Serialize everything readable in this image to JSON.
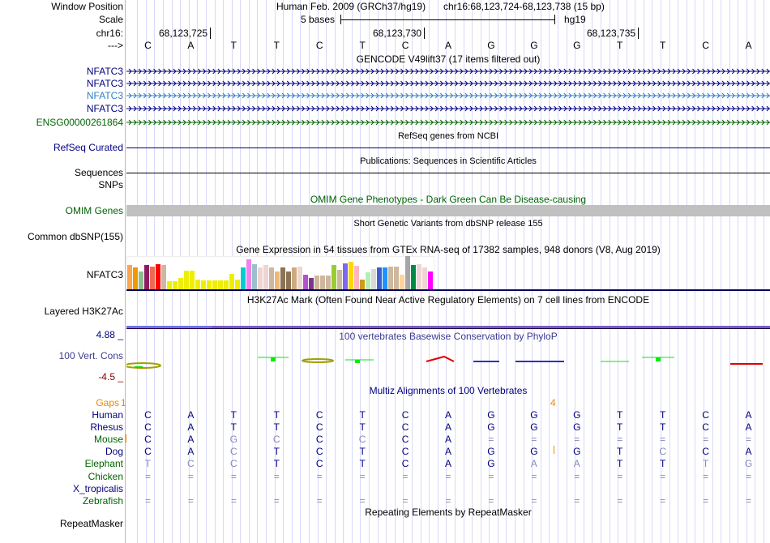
{
  "header": {
    "window_position_label": "Window Position",
    "assembly": "Human Feb. 2009 (GRCh37/hg19)",
    "position": "chr16:68,123,724-68,123,738 (15 bp)",
    "scale_label": "Scale",
    "scale_text": "5 bases",
    "scale_db": "hg19",
    "chrom_label": "chr16:",
    "ticks": [
      "68,123,725",
      "68,123,730",
      "68,123,735"
    ],
    "strand_label": "--->",
    "sequence": "CATTCTCAGGGTTCA"
  },
  "tracks": {
    "gencode": {
      "title": "GENCODE V49lift37 (17 items filtered out)",
      "items": [
        {
          "label": "NFATC3",
          "color": "#000080"
        },
        {
          "label": "NFATC3",
          "color": "#000080"
        },
        {
          "label": "NFATC3",
          "color": "#2f7fc0"
        },
        {
          "label": "NFATC3",
          "color": "#000080"
        },
        {
          "label": "ENSG00000261864",
          "color": "#006400"
        }
      ]
    },
    "refseq": {
      "title": "RefSeq genes from NCBI",
      "label": "RefSeq Curated"
    },
    "publications": {
      "title": "Publications: Sequences in Scientific Articles",
      "label": "Sequences"
    },
    "snps": {
      "label": "SNPs"
    },
    "omim": {
      "title": "OMIM Gene Phenotypes - Dark Green Can Be Disease-causing",
      "label": "OMIM Genes"
    },
    "dbsnp": {
      "title": "Short Genetic Variants from dbSNP release 155",
      "label": "Common dbSNP(155)"
    },
    "gtex": {
      "title": "Gene Expression in 54 tissues from GTEx RNA-seq of 17382 samples, 948 donors (V8, Aug 2019)",
      "label": "NFATC3",
      "relative_expression": [
        0.72,
        0.67,
        0.54,
        0.73,
        0.69,
        0.76,
        0.72,
        0.24,
        0.24,
        0.33,
        0.57,
        0.57,
        0.3,
        0.28,
        0.28,
        0.28,
        0.28,
        0.28,
        0.47,
        0.3,
        0.65,
        0.91,
        0.76,
        0.65,
        0.74,
        0.65,
        0.54,
        0.67,
        0.54,
        0.65,
        0.68,
        0.43,
        0.35,
        0.42,
        0.42,
        0.42,
        0.74,
        0.59,
        0.79,
        0.84,
        0.7,
        0.3,
        0.52,
        0.62,
        0.67,
        0.67,
        0.68,
        0.69,
        0.45,
        1.0,
        0.74,
        0.76,
        0.67,
        0.54
      ],
      "colors": [
        "#FFA54F",
        "#EE9A00",
        "#8FBC8F",
        "#8B1C62",
        "#EE6A50",
        "#FF0000",
        "#CDB79E",
        "#EEEE00",
        "#EEEE00",
        "#EEEE00",
        "#EEEE00",
        "#EEEE00",
        "#EEEE00",
        "#EEEE00",
        "#EEEE00",
        "#EEEE00",
        "#EEEE00",
        "#EEEE00",
        "#EEEE00",
        "#EEEE00",
        "#00CDCD",
        "#EE82EE",
        "#9AC0CD",
        "#EED5D2",
        "#EED5D2",
        "#CDB79E",
        "#EEB777",
        "#8B7355",
        "#8B7355",
        "#CDAA7D",
        "#EED5D2",
        "#B452CD",
        "#7A378B",
        "#CDB79E",
        "#CDB79E",
        "#CDB79E",
        "#9ACD32",
        "#CDB79E",
        "#7B68EE",
        "#FFD700",
        "#FFB6C1",
        "#CD9B1D",
        "#B4EEB4",
        "#D9D9D9",
        "#3A5FCD",
        "#1E90FF",
        "#CDB79E",
        "#CDB79E",
        "#FFD39B",
        "#A6A6A6",
        "#008B45",
        "#EED5D2",
        "#EED5D2",
        "#FF00FF"
      ]
    },
    "h3k27ac": {
      "title": "H3K27Ac Mark (Often Found Near Active Regulatory Elements) on 7 cell lines from ENCODE",
      "label": "Layered H3K27Ac"
    },
    "phylop": {
      "title": "100 vertebrates Basewise Conservation by PhyloP",
      "label": "100 Vert. Cons",
      "max": "4.88 _",
      "min": "-4.5 _"
    },
    "multiz": {
      "title": "Multiz Alignments of 100 Vertebrates",
      "gaps_label": "Gaps",
      "gaps_left": "1",
      "gaps_mid": "4",
      "species": [
        {
          "name": "Human",
          "color": "#000080",
          "bases": "CATTCTCAGGGTTCA",
          "faded": []
        },
        {
          "name": "Rhesus",
          "color": "#000080",
          "bases": "CATTCTCAGGGTTCA",
          "faded": []
        },
        {
          "name": "Mouse",
          "color": "#006400",
          "bases": "CAGCCCCA=======",
          "faded": [
            2,
            3,
            5
          ]
        },
        {
          "name": "Dog",
          "color": "#000080",
          "bases": "CACTCTCAGGGTCCA",
          "faded": [
            2,
            12
          ]
        },
        {
          "name": "Elephant",
          "color": "#006400",
          "bases": "TCCTCTCAGAATTTG",
          "faded": [
            0,
            1,
            2,
            9,
            10,
            13,
            14
          ]
        },
        {
          "name": "Chicken",
          "color": "#006400",
          "bases": "===============",
          "faded": []
        },
        {
          "name": "X_tropicalis",
          "color": "#000080",
          "bases": "",
          "faded": []
        },
        {
          "name": "Zebrafish",
          "color": "#006400",
          "bases": "===============",
          "faded": []
        }
      ]
    },
    "repeatmasker": {
      "title": "Repeating Elements by RepeatMasker",
      "label": "RepeatMasker"
    }
  }
}
